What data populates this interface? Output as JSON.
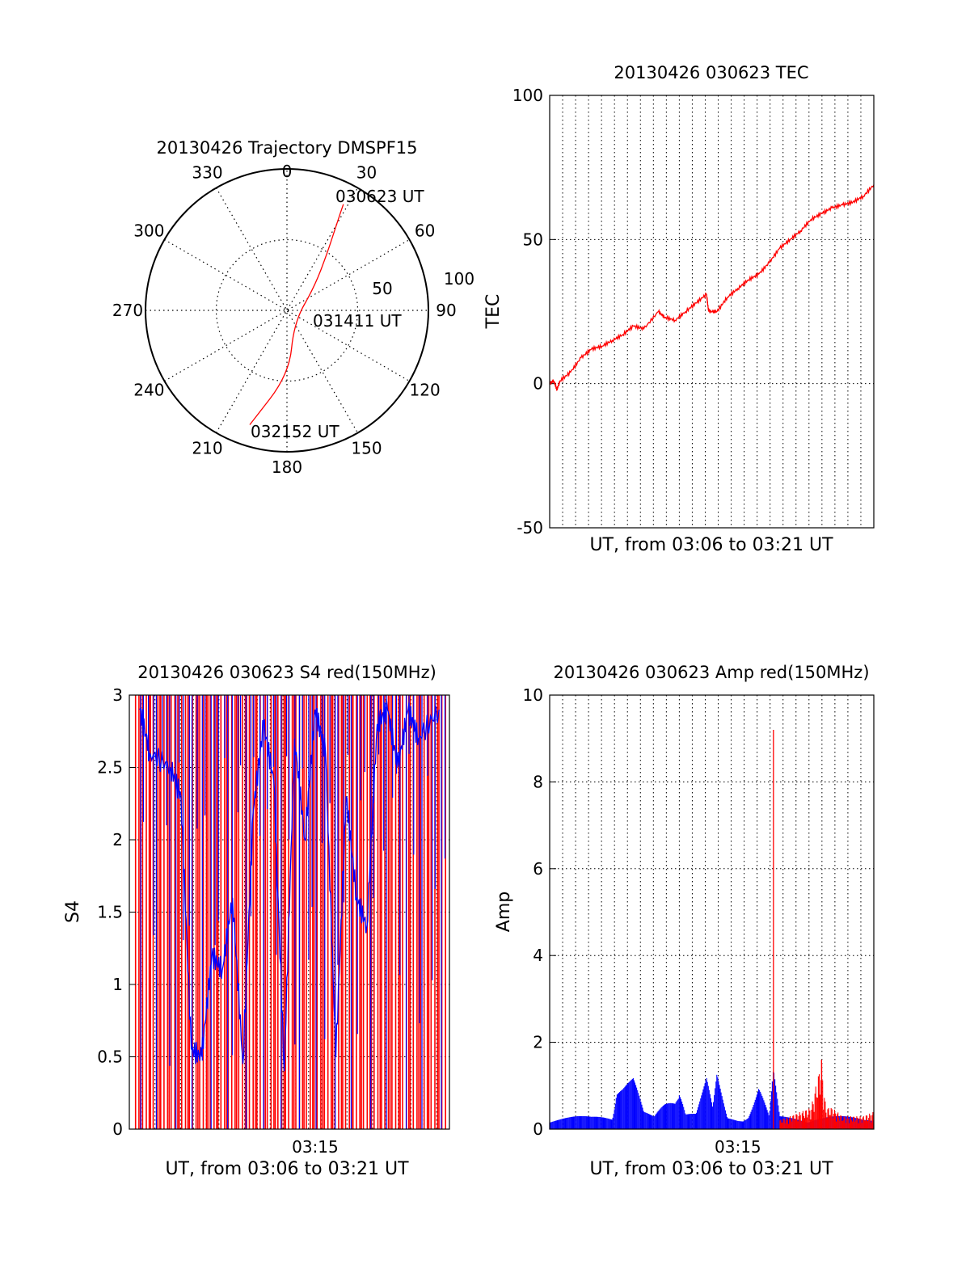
{
  "colors": {
    "red": "#ff0000",
    "blue": "#0000ff",
    "axis": "#000000",
    "grid": "#000000"
  },
  "chart_data": [
    {
      "type": "polar",
      "title": "20130426 Trajectory DMSPF15",
      "azimuth_labels": [
        "0",
        "30",
        "60",
        "90",
        "120",
        "150",
        "180",
        "210",
        "240",
        "270",
        "300",
        "330"
      ],
      "radial_labels": [
        "50",
        "100"
      ],
      "grid": true,
      "series": [
        {
          "color": "red",
          "points": [
            {
              "azimuth": 28,
              "radius": 85
            },
            {
              "azimuth": 30,
              "radius": 70
            },
            {
              "azimuth": 35,
              "radius": 50
            },
            {
              "azimuth": 50,
              "radius": 25
            },
            {
              "azimuth": 150,
              "radius": 10
            },
            {
              "azimuth": 178,
              "radius": 45
            },
            {
              "azimuth": 198,
              "radius": 85
            }
          ]
        }
      ],
      "annotations": [
        "030623 UT",
        "031411 UT",
        "032152 UT"
      ]
    },
    {
      "type": "line",
      "title": "20130426 030623 TEC",
      "xlabel": "UT, from 03:06 to 03:21 UT",
      "ylabel": "TEC",
      "xlim": [
        0,
        15.5
      ],
      "ylim": [
        -50,
        100
      ],
      "yticks": [
        -50,
        0,
        50,
        100
      ],
      "grid": true,
      "series": [
        {
          "color": "red",
          "x": [
            0,
            0.2,
            0.35,
            0.5,
            1.0,
            1.5,
            2.0,
            2.5,
            3.0,
            3.5,
            4.0,
            4.5,
            5.2,
            5.5,
            6.0,
            6.5,
            7.0,
            7.5,
            7.6,
            8.0,
            8.5,
            9.0,
            9.5,
            10.0,
            10.5,
            11.0,
            11.5,
            12.0,
            12.5,
            13.0,
            13.5,
            14.0,
            14.5,
            15.0,
            15.5
          ],
          "y": [
            0,
            1,
            -2,
            1,
            4,
            9,
            12,
            13,
            15,
            17,
            20,
            19,
            25,
            23,
            22,
            25,
            28,
            31,
            25,
            25,
            30,
            33,
            36,
            38,
            42,
            47,
            50,
            53,
            57,
            59,
            61,
            62,
            63,
            65,
            69
          ]
        }
      ]
    },
    {
      "type": "line",
      "title": "20130426 030623 S4 red(150MHz)",
      "xlabel": "UT, from 03:06 to 03:21 UT",
      "ylabel": "S4",
      "xlim": [
        0,
        15.5
      ],
      "ylim": [
        0,
        3
      ],
      "yticks": [
        "0",
        "0.5",
        "1",
        "1.5",
        "2",
        "2.5",
        "3"
      ],
      "xticks": [
        "03:15"
      ],
      "grid": true,
      "series": [
        {
          "color": "red",
          "note": "dense vertical spikes saturating between 0 and 3"
        },
        {
          "color": "blue",
          "x": [
            0.5,
            1.0,
            2.0,
            2.5,
            3.0,
            3.5,
            4.0,
            4.5,
            5.0,
            5.5,
            6.0,
            6.5,
            7.0,
            7.5,
            8.0,
            8.5,
            9.0,
            9.5,
            10.0,
            10.5,
            11.0,
            11.5,
            12.0,
            12.5,
            13.0,
            13.5,
            14.0,
            15.0
          ],
          "y": [
            2.9,
            2.6,
            2.5,
            2.3,
            0.55,
            0.5,
            1.2,
            1.1,
            1.6,
            0.45,
            2.2,
            2.8,
            2.4,
            0.4,
            2.7,
            2.0,
            2.9,
            2.6,
            0.5,
            2.3,
            1.6,
            1.4,
            2.8,
            2.9,
            2.5,
            2.9,
            2.7,
            2.9
          ]
        }
      ]
    },
    {
      "type": "line",
      "title": "20130426 030623 Amp red(150MHz)",
      "xlabel": "UT, from 03:06 to 03:21 UT",
      "ylabel": "Amp",
      "xlim": [
        0,
        15.5
      ],
      "ylim": [
        0,
        10
      ],
      "yticks": [
        0,
        2,
        4,
        6,
        8,
        10
      ],
      "xticks": [
        "03:15"
      ],
      "grid": true,
      "series": [
        {
          "color": "red",
          "x": [
            0,
            2,
            4,
            6,
            8,
            10.5,
            10.7,
            10.9,
            11.5,
            12.5,
            13.0,
            13.2,
            13.5,
            14.0,
            15.0,
            15.5
          ],
          "y": [
            0.1,
            0.1,
            0.1,
            0.1,
            0.1,
            0.2,
            9.2,
            0.2,
            0.3,
            0.5,
            1.6,
            0.5,
            0.5,
            0.3,
            0.3,
            0.4
          ]
        },
        {
          "color": "blue",
          "x": [
            0,
            1,
            2,
            3,
            3.2,
            3.5,
            4.0,
            4.5,
            5.0,
            5.5,
            6.0,
            6.2,
            6.5,
            7.0,
            7.5,
            7.8,
            8.0,
            8.5,
            9.0,
            9.5,
            10.0,
            10.5,
            10.7,
            11.0,
            12.0,
            13.0,
            14.0,
            15.0,
            15.5
          ],
          "y": [
            0.3,
            0.3,
            0.3,
            0.4,
            1.4,
            1.3,
            1.3,
            0.4,
            0.3,
            0.7,
            1.0,
            1.5,
            0.5,
            0.4,
            1.2,
            0.5,
            1.3,
            0.3,
            0.3,
            0.4,
            1.1,
            0.3,
            1.4,
            0.3,
            0.3,
            0.3,
            0.3,
            0.3,
            0.4
          ]
        }
      ]
    }
  ]
}
